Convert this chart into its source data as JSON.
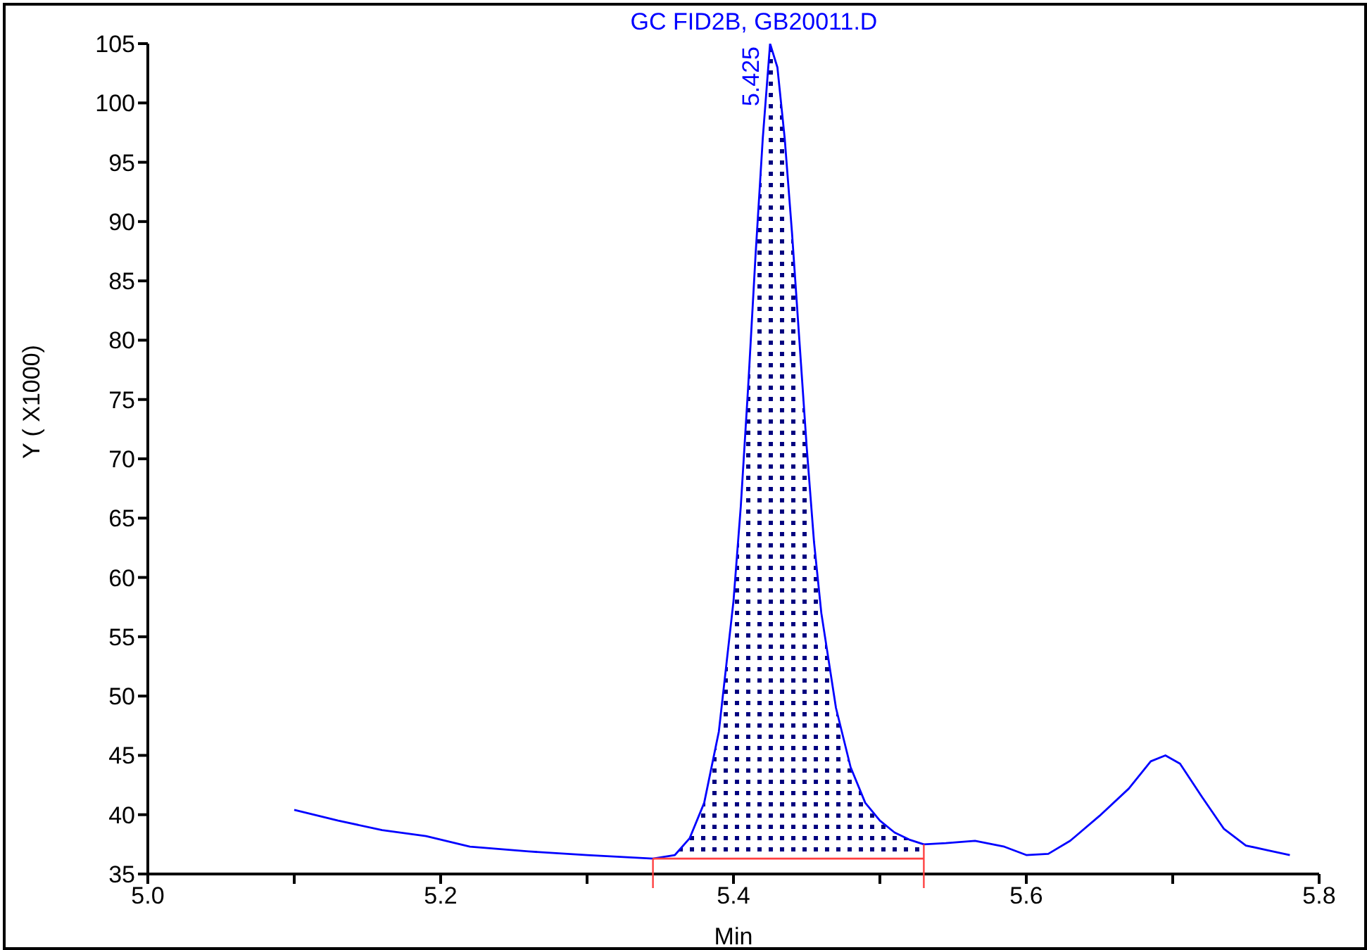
{
  "chart_data": {
    "type": "line",
    "title": "GC FID2B, GB20011.D",
    "xlabel": "Min",
    "ylabel": "Y ( X1000)",
    "annotations": [
      {
        "text": "5.425",
        "x": 5.425,
        "y": 105
      }
    ],
    "xlim": [
      5.0,
      5.8
    ],
    "ylim": [
      35,
      105
    ],
    "xticks": [
      {
        "value": 5.0,
        "label": "5.0"
      },
      {
        "value": 5.1,
        "label": null
      },
      5.2,
      {
        "value": 5.3,
        "label": null
      },
      5.4,
      {
        "value": 5.5,
        "label": null
      },
      5.6,
      {
        "value": 5.7,
        "label": null
      },
      5.8
    ],
    "yticks": [
      35,
      40,
      45,
      50,
      55,
      60,
      65,
      70,
      75,
      80,
      85,
      90,
      95,
      100,
      105
    ],
    "grid": false,
    "legend": false,
    "marker": "none",
    "line_style": "solid",
    "series": [
      {
        "color": "#0000ff",
        "x": [
          5.1,
          5.13,
          5.16,
          5.19,
          5.22,
          5.26,
          5.3,
          5.345,
          5.36,
          5.37,
          5.38,
          5.39,
          5.4,
          5.405,
          5.41,
          5.415,
          5.42,
          5.425,
          5.43,
          5.435,
          5.44,
          5.445,
          5.45,
          5.455,
          5.46,
          5.47,
          5.48,
          5.49,
          5.5,
          5.51,
          5.52,
          5.53,
          5.545,
          5.565,
          5.585,
          5.6,
          5.615,
          5.63,
          5.65,
          5.67,
          5.685,
          5.695,
          5.705,
          5.72,
          5.735,
          5.75,
          5.765,
          5.78
        ],
        "values": [
          40.4,
          39.5,
          38.7,
          38.2,
          37.3,
          36.9,
          36.6,
          36.3,
          36.6,
          38,
          41,
          47,
          58,
          66,
          76,
          87,
          97,
          105,
          103,
          97,
          89,
          80,
          71,
          63,
          57,
          49,
          44,
          41,
          39.5,
          38.5,
          37.9,
          37.5,
          37.6,
          37.8,
          37.3,
          36.6,
          36.7,
          37.8,
          39.9,
          42.2,
          44.5,
          45,
          44.3,
          41.5,
          38.8,
          37.4,
          37,
          36.6
        ],
        "lower": [
          null,
          null,
          null,
          null,
          null,
          null,
          null,
          36.3,
          36.3,
          36.3,
          36.3,
          36.3,
          36.3,
          36.3,
          36.3,
          36.3,
          36.3,
          36.3,
          36.3,
          36.3,
          36.3,
          36.3,
          36.3,
          36.3,
          36.3,
          36.3,
          36.3,
          36.3,
          36.3,
          36.3,
          36.3,
          36.3,
          null,
          null,
          null,
          null,
          null,
          null,
          null,
          null,
          null,
          null,
          null,
          null,
          null,
          null,
          null,
          null
        ],
        "upper": [
          null,
          null,
          null,
          null,
          null,
          null,
          null,
          36.3,
          36.6,
          38,
          41,
          47,
          58,
          66,
          76,
          87,
          97,
          105,
          103,
          97,
          89,
          80,
          71,
          63,
          57,
          49,
          44,
          41,
          39.5,
          38.5,
          37.9,
          37.5,
          null,
          null,
          null,
          null,
          null,
          null,
          null,
          null,
          null,
          null,
          null,
          null,
          null,
          null,
          null,
          null
        ]
      },
      {
        "color": "#ff4040",
        "x": [
          5.345,
          5.53
        ],
        "values": [
          36.3,
          36.3
        ]
      }
    ]
  }
}
